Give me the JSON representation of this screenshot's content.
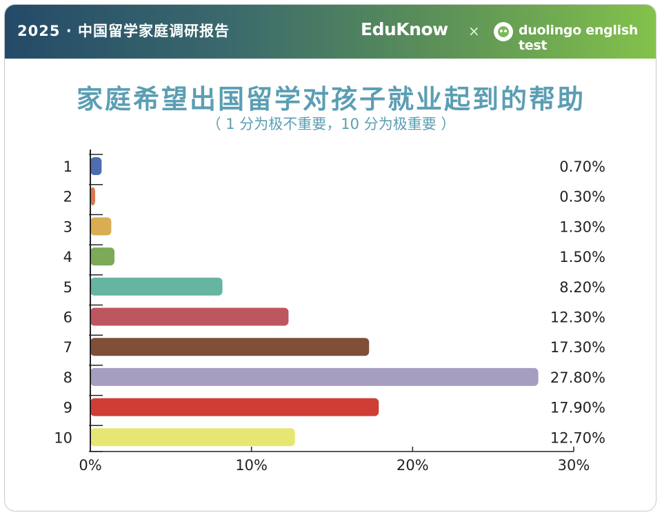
{
  "header": {
    "title": "2025 · 中国留学家庭调研报告",
    "brand_left": "EduKnow",
    "brand_sep": "×",
    "brand_right": "duolingo english test",
    "brand_right_icon": "duolingo-owl-icon"
  },
  "chart_data": {
    "type": "bar",
    "orientation": "horizontal",
    "title": "家庭希望出国留学对孩子就业起到的帮助",
    "subtitle": "（ 1 分为极不重要，10 分为极重要 ）",
    "categories": [
      "1",
      "2",
      "3",
      "4",
      "5",
      "6",
      "7",
      "8",
      "9",
      "10"
    ],
    "values": [
      0.7,
      0.3,
      1.3,
      1.5,
      8.2,
      12.3,
      17.3,
      27.8,
      17.9,
      12.7
    ],
    "value_labels": [
      "0.70%",
      "0.30%",
      "1.30%",
      "1.50%",
      "8.20%",
      "12.30%",
      "17.30%",
      "27.80%",
      "17.90%",
      "12.70%"
    ],
    "colors": [
      "#4f6cb0",
      "#d67a4f",
      "#d9ad52",
      "#7caa59",
      "#66b5a3",
      "#be5660",
      "#7f4f38",
      "#a59ec0",
      "#cf3e36",
      "#e8e673"
    ],
    "xlim": [
      0,
      30
    ],
    "xticks": [
      0,
      10,
      20,
      30
    ],
    "xtick_labels": [
      "0%",
      "10%",
      "20%",
      "30%"
    ],
    "grid": false,
    "legend": "none"
  }
}
